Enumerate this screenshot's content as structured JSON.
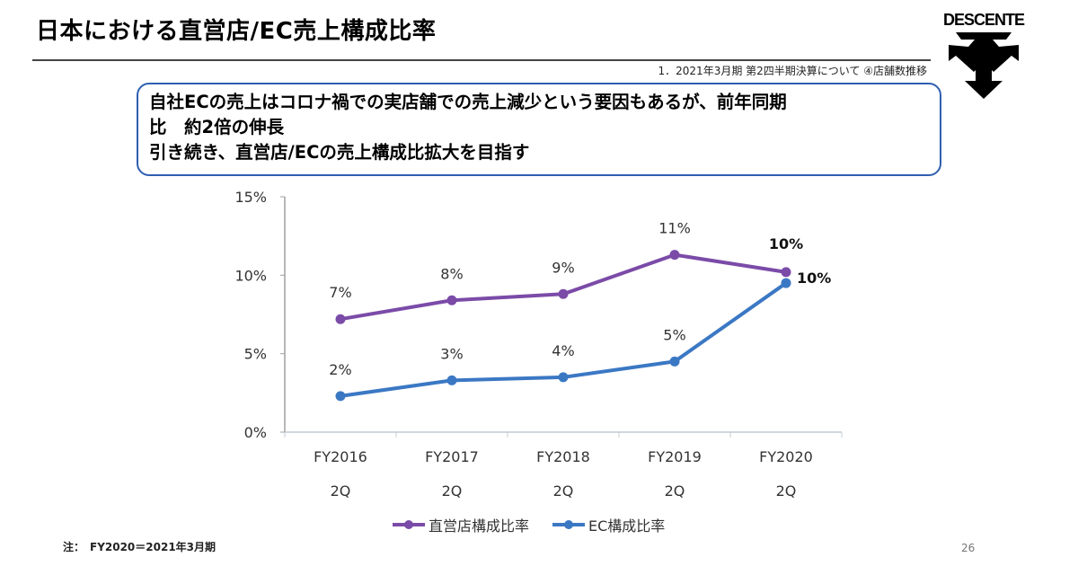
{
  "header": {
    "title": "日本における直営店/EC売上構成比率",
    "subtitle": "1．2021年3月期 第2四半期決算について ④店舗数推移",
    "logo_text": "DESCENTE"
  },
  "callout": {
    "lines": [
      "自社ECの売上はコロナ禍での実店舗での売上減少という要因もあるが、前年同期",
      "比　約2倍の伸長",
      "引き続き、直営店/ECの売上構成比拡大を目指す"
    ]
  },
  "colors": {
    "direct_store": "#7b4ba8",
    "ec": "#3b78c4",
    "callout_border": "#2f5fb0"
  },
  "chart_data": {
    "type": "line",
    "title": "",
    "xlabel": "",
    "ylabel": "",
    "categories": [
      "FY2016\n2Q",
      "FY2017\n2Q",
      "FY2018\n2Q",
      "FY2019\n2Q",
      "FY2020\n2Q"
    ],
    "category_lines": [
      [
        "FY2016",
        "2Q"
      ],
      [
        "FY2017",
        "2Q"
      ],
      [
        "FY2018",
        "2Q"
      ],
      [
        "FY2019",
        "2Q"
      ],
      [
        "FY2020",
        "2Q"
      ]
    ],
    "ylim": [
      0,
      15
    ],
    "yticks": [
      0,
      5,
      10,
      15
    ],
    "ytick_labels": [
      "0%",
      "5%",
      "10%",
      "15%"
    ],
    "grid": false,
    "legend_position": "bottom",
    "series": [
      {
        "name": "直営店構成比率",
        "color": "#7b4ba8",
        "values": [
          7.2,
          8.4,
          8.8,
          11.3,
          10.2
        ],
        "labels": [
          "7%",
          "8%",
          "9%",
          "11%",
          "10%"
        ],
        "bold_last_label": true
      },
      {
        "name": "EC構成比率",
        "color": "#3b78c4",
        "values": [
          2.3,
          3.3,
          3.5,
          4.5,
          9.5
        ],
        "labels": [
          "2%",
          "3%",
          "4%",
          "5%",
          "10%"
        ],
        "bold_last_label": true
      }
    ]
  },
  "footer": {
    "note": "注：　FY2020＝2021年3月期",
    "page_number": "26"
  }
}
